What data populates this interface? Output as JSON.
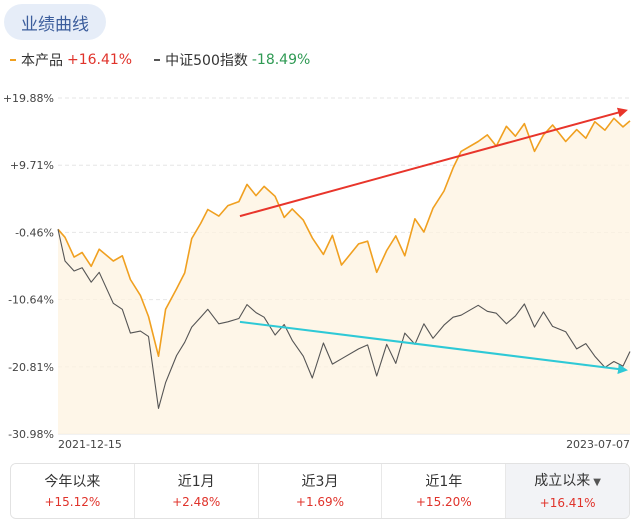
{
  "header": {
    "title": "业绩曲线"
  },
  "legend": [
    {
      "name": "本产品",
      "value": "+16.41%",
      "color": "#f0a020",
      "trend": "up"
    },
    {
      "name": "中证500指数",
      "value": "-18.49%",
      "color": "#555555",
      "trend": "down"
    }
  ],
  "chart_data": {
    "type": "line",
    "title": "",
    "xlabel": "",
    "ylabel": "",
    "x_range": [
      "2021-12-15",
      "2023-07-07"
    ],
    "x_tick_labels": [
      "2021-12-15",
      "2023-07-07"
    ],
    "y_unit": "%",
    "ylim": [
      -30.98,
      19.88
    ],
    "y_tick_labels": [
      "+19.88%",
      "+9.71%",
      "-0.46%",
      "-10.64%",
      "-20.81%",
      "-30.98%"
    ],
    "grid": true,
    "legend_position": "top-left",
    "series": [
      {
        "name": "本产品",
        "color": "#f0a020",
        "area_fill": true,
        "x": [
          "2021-12-15",
          "2021-12-22",
          "2021-12-31",
          "2022-01-08",
          "2022-01-17",
          "2022-01-25",
          "2022-02-08",
          "2022-02-17",
          "2022-02-25",
          "2022-03-07",
          "2022-03-15",
          "2022-03-25",
          "2022-04-01",
          "2022-04-12",
          "2022-04-20",
          "2022-04-27",
          "2022-05-06",
          "2022-05-13",
          "2022-05-24",
          "2022-06-02",
          "2022-06-13",
          "2022-06-21",
          "2022-06-30",
          "2022-07-08",
          "2022-07-19",
          "2022-07-28",
          "2022-08-05",
          "2022-08-16",
          "2022-08-25",
          "2022-09-05",
          "2022-09-14",
          "2022-09-23",
          "2022-10-10",
          "2022-10-19",
          "2022-10-28",
          "2022-11-07",
          "2022-11-16",
          "2022-11-25",
          "2022-12-05",
          "2022-12-14",
          "2022-12-23",
          "2023-01-03",
          "2023-01-12",
          "2023-01-20",
          "2023-02-06",
          "2023-02-15",
          "2023-02-24",
          "2023-03-06",
          "2023-03-15",
          "2023-03-24",
          "2023-04-03",
          "2023-04-12",
          "2023-04-21",
          "2023-05-04",
          "2023-05-15",
          "2023-05-24",
          "2023-06-02",
          "2023-06-12",
          "2023-06-21",
          "2023-06-30",
          "2023-07-07"
        ],
        "values": [
          0.0,
          -1.2,
          -4.2,
          -3.5,
          -5.6,
          -3.0,
          -4.8,
          -4.0,
          -7.6,
          -10.0,
          -13.2,
          -19.2,
          -12.1,
          -9.0,
          -6.6,
          -1.4,
          0.9,
          3.0,
          2.0,
          3.6,
          4.2,
          6.8,
          5.1,
          6.5,
          5.0,
          1.8,
          3.1,
          1.4,
          -1.3,
          -3.8,
          -0.9,
          -5.4,
          -2.2,
          -1.8,
          -6.5,
          -3.2,
          -1.0,
          -4.0,
          1.6,
          -0.4,
          3.2,
          5.8,
          9.3,
          11.8,
          13.3,
          14.3,
          12.6,
          15.6,
          14.1,
          16.0,
          11.8,
          14.3,
          15.8,
          13.3,
          15.1,
          13.8,
          16.3,
          15.0,
          16.8,
          15.5,
          16.41
        ]
      },
      {
        "name": "中证500指数",
        "color": "#555555",
        "area_fill": false,
        "x": [
          "2021-12-15",
          "2021-12-22",
          "2021-12-31",
          "2022-01-08",
          "2022-01-17",
          "2022-01-25",
          "2022-02-08",
          "2022-02-17",
          "2022-02-25",
          "2022-03-07",
          "2022-03-15",
          "2022-03-25",
          "2022-04-01",
          "2022-04-12",
          "2022-04-20",
          "2022-04-27",
          "2022-05-06",
          "2022-05-13",
          "2022-05-24",
          "2022-06-02",
          "2022-06-13",
          "2022-06-21",
          "2022-06-30",
          "2022-07-08",
          "2022-07-19",
          "2022-07-28",
          "2022-08-05",
          "2022-08-16",
          "2022-08-25",
          "2022-09-05",
          "2022-09-14",
          "2022-09-23",
          "2022-10-10",
          "2022-10-19",
          "2022-10-28",
          "2022-11-07",
          "2022-11-16",
          "2022-11-25",
          "2022-12-05",
          "2022-12-14",
          "2022-12-23",
          "2023-01-03",
          "2023-01-12",
          "2023-01-20",
          "2023-02-06",
          "2023-02-15",
          "2023-02-24",
          "2023-03-06",
          "2023-03-15",
          "2023-03-24",
          "2023-04-03",
          "2023-04-12",
          "2023-04-21",
          "2023-05-04",
          "2023-05-15",
          "2023-05-24",
          "2023-06-02",
          "2023-06-12",
          "2023-06-21",
          "2023-06-30",
          "2023-07-07"
        ],
        "values": [
          0.0,
          -4.8,
          -6.3,
          -5.8,
          -8.0,
          -6.5,
          -11.2,
          -12.1,
          -15.7,
          -15.4,
          -16.2,
          -27.1,
          -23.2,
          -19.1,
          -17.1,
          -14.8,
          -13.3,
          -12.1,
          -14.3,
          -14.0,
          -13.5,
          -11.4,
          -12.6,
          -13.3,
          -16.0,
          -14.4,
          -16.8,
          -19.2,
          -22.5,
          -17.2,
          -20.4,
          -19.6,
          -18.1,
          -17.5,
          -22.2,
          -17.4,
          -20.3,
          -15.7,
          -17.4,
          -14.3,
          -16.5,
          -14.5,
          -13.3,
          -13.0,
          -11.5,
          -12.4,
          -12.7,
          -14.3,
          -13.1,
          -11.3,
          -14.8,
          -12.5,
          -14.7,
          -15.5,
          -18.1,
          -17.3,
          -19.2,
          -20.9,
          -20.0,
          -20.7,
          -18.49
        ]
      }
    ],
    "trend_annotations": [
      {
        "color": "#e8352b",
        "from": {
          "x": "2022-06-14",
          "y": 2.0
        },
        "to": {
          "x": "2023-07-07",
          "y": 18.0
        }
      },
      {
        "color": "#2ec9d6",
        "from": {
          "x": "2022-06-14",
          "y": -14.0
        },
        "to": {
          "x": "2023-07-07",
          "y": -21.3
        }
      }
    ]
  },
  "tabs": [
    {
      "label": "今年以来",
      "value": "+15.12%"
    },
    {
      "label": "近1月",
      "value": "+2.48%"
    },
    {
      "label": "近3月",
      "value": "+1.69%"
    },
    {
      "label": "近1年",
      "value": "+15.20%"
    },
    {
      "label": "成立以来",
      "value": "+16.41%",
      "active": true,
      "caret": "▼"
    }
  ]
}
